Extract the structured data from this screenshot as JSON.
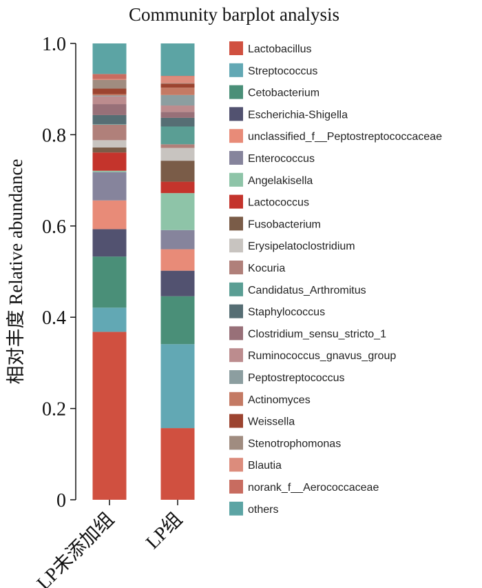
{
  "chart_data": {
    "type": "bar",
    "stacked": true,
    "title": "Community barplot analysis",
    "xlabel": "",
    "ylabel": "相对丰度 Relative abundance",
    "ylim": [
      0,
      1.0
    ],
    "yticks": [
      "0",
      "0.2",
      "0.4",
      "0.6",
      "0.8",
      "1.0"
    ],
    "categories": [
      "LP未添加组",
      "LP组"
    ],
    "legend_position": "right",
    "grid": false,
    "series": [
      {
        "name": "Lactobacillus",
        "color": "#D05040",
        "values": [
          0.368,
          0.157
        ]
      },
      {
        "name": "Streptococcus",
        "color": "#62A8B4",
        "values": [
          0.053,
          0.184
        ]
      },
      {
        "name": "Cetobacterium",
        "color": "#4A8F78",
        "values": [
          0.112,
          0.105
        ]
      },
      {
        "name": "Escherichia-Shigella",
        "color": "#525270",
        "values": [
          0.06,
          0.056
        ]
      },
      {
        "name": "unclassified_f__Peptostreptococcaceae",
        "color": "#E88B78",
        "values": [
          0.063,
          0.047
        ]
      },
      {
        "name": "Enterococcus",
        "color": "#86849C",
        "values": [
          0.062,
          0.042
        ]
      },
      {
        "name": "Angelakisella",
        "color": "#8EC4A8",
        "values": [
          0.003,
          0.081
        ]
      },
      {
        "name": "Lactococcus",
        "color": "#C4342C",
        "values": [
          0.04,
          0.025
        ]
      },
      {
        "name": "Fusobacterium",
        "color": "#7A5C48",
        "values": [
          0.011,
          0.046
        ]
      },
      {
        "name": "Erysipelatoclostridium",
        "color": "#C8C4C0",
        "values": [
          0.016,
          0.028
        ]
      },
      {
        "name": "Kocuria",
        "color": "#B0807A",
        "values": [
          0.034,
          0.008
        ]
      },
      {
        "name": "Candidatus_Arthromitus",
        "color": "#5A9E94",
        "values": [
          0.001,
          0.039
        ]
      },
      {
        "name": "Staphylococcus",
        "color": "#566E74",
        "values": [
          0.02,
          0.019
        ]
      },
      {
        "name": "Clostridium_sensu_stricto_1",
        "color": "#987078",
        "values": [
          0.024,
          0.013
        ]
      },
      {
        "name": "Ruminococcus_gnavus_group",
        "color": "#BC8C8E",
        "values": [
          0.017,
          0.014
        ]
      },
      {
        "name": "Peptostreptococcus",
        "color": "#8C9EA0",
        "values": [
          0.002,
          0.023
        ]
      },
      {
        "name": "Actinomyces",
        "color": "#C47A64",
        "values": [
          0.003,
          0.016
        ]
      },
      {
        "name": "Weissella",
        "color": "#9C4430",
        "values": [
          0.012,
          0.009
        ]
      },
      {
        "name": "Stenotrophomonas",
        "color": "#A08C80",
        "values": [
          0.019,
          0.001
        ]
      },
      {
        "name": "Blautia",
        "color": "#DC8C7C",
        "values": [
          0.002,
          0.015
        ]
      },
      {
        "name": "norank_f__Aerococcaceae",
        "color": "#C86C60",
        "values": [
          0.011,
          0.001
        ]
      },
      {
        "name": "others",
        "color": "#5CA4A4",
        "values": [
          0.067,
          0.072
        ]
      }
    ]
  }
}
